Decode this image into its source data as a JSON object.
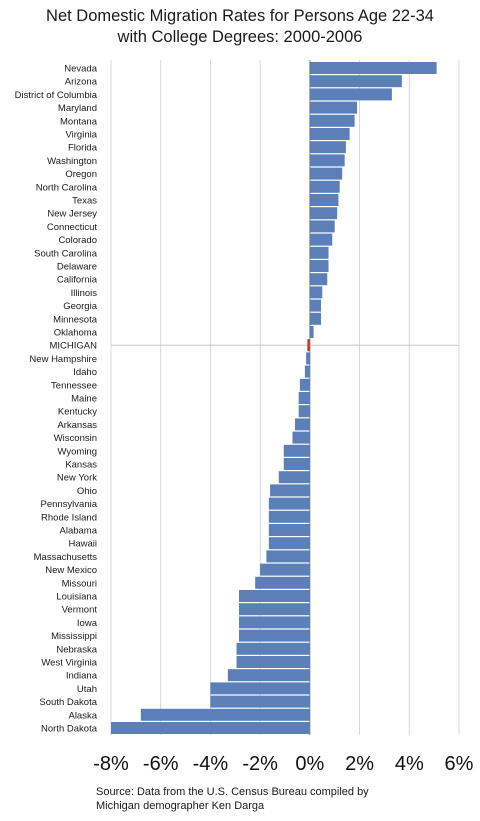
{
  "title": {
    "line1": "Net Domestic Migration Rates for Persons Age 22-34",
    "line2": "with College Degrees: 2000-2006"
  },
  "source": {
    "line1": "Source: Data from the U.S. Census Bureau compiled by",
    "line2": "Michigan demographer Ken Darga"
  },
  "colors": {
    "bar": "#5b7fb6",
    "highlight": "#c0392b",
    "axis": "#999999"
  },
  "chart_data": {
    "type": "bar",
    "orientation": "horizontal",
    "title": "Net Domestic Migration Rates for Persons Age 22-34 with College Degrees: 2000-2006",
    "xlim": [
      -8,
      6
    ],
    "ticks": [
      -8,
      -6,
      -4,
      -2,
      0,
      2,
      4,
      6
    ],
    "tick_labels": [
      "-8%",
      "-6%",
      "-4%",
      "-2%",
      "0%",
      "2%",
      "4%",
      "6%"
    ],
    "highlight_category": "MICHIGAN",
    "grid": "vertical",
    "categories": [
      "Nevada",
      "Arizona",
      "District of Columbia",
      "Maryland",
      "Montana",
      "Virginia",
      "Florida",
      "Washington",
      "Oregon",
      "North Carolina",
      "Texas",
      "New Jersey",
      "Connecticut",
      "Colorado",
      "South Carolina",
      "Delaware",
      "California",
      "Illinois",
      "Georgia",
      "Minnesota",
      "Oklahoma",
      "MICHIGAN",
      "New Hampshire",
      "Idaho",
      "Tennessee",
      "Maine",
      "Kentucky",
      "Arkansas",
      "Wisconsin",
      "Wyoming",
      "Kansas",
      "New York",
      "Ohio",
      "Pennsylvania",
      "Rhode Island",
      "Alabama",
      "Hawaii",
      "Massachusetts",
      "New Mexico",
      "Missouri",
      "Louisiana",
      "Vermont",
      "Iowa",
      "Mississippi",
      "Nebraska",
      "West Virginia",
      "Indiana",
      "Utah",
      "South Dakota",
      "Alaska",
      "North Dakota"
    ],
    "values": [
      5.1,
      3.7,
      3.3,
      1.9,
      1.8,
      1.6,
      1.45,
      1.4,
      1.3,
      1.2,
      1.15,
      1.1,
      1.0,
      0.9,
      0.75,
      0.75,
      0.7,
      0.5,
      0.45,
      0.45,
      0.15,
      -0.1,
      -0.15,
      -0.2,
      -0.4,
      -0.45,
      -0.45,
      -0.6,
      -0.7,
      -1.05,
      -1.05,
      -1.25,
      -1.6,
      -1.65,
      -1.65,
      -1.65,
      -1.65,
      -1.75,
      -2.0,
      -2.2,
      -2.85,
      -2.85,
      -2.85,
      -2.85,
      -2.95,
      -2.95,
      -3.3,
      -4.0,
      -4.0,
      -6.8,
      -8.0
    ]
  }
}
